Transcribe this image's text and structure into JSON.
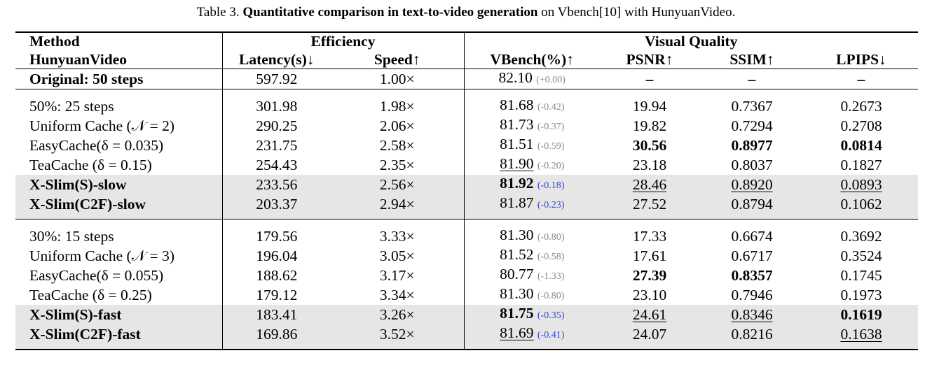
{
  "caption": {
    "prefix": "Table 3.",
    "bold": "Quantitative comparison in text-to-video generation",
    "suffix": "on Vbench[10] with HunyuanVideo."
  },
  "header": {
    "method": "Method",
    "model": "HunyuanVideo",
    "efficiency": "Efficiency",
    "visual_quality": "Visual Quality",
    "latency": "Latency(s)↓",
    "speed": "Speed↑",
    "vbench": "VBench(%)↑",
    "psnr": "PSNR↑",
    "ssim": "SSIM↑",
    "lpips": "LPIPS↓"
  },
  "original": {
    "method": "Original: 50 steps",
    "latency": "597.92",
    "speed": "1.00×",
    "vbench": "82.10",
    "delta": "(+0.00)",
    "psnr": "–",
    "ssim": "–",
    "lpips": "–"
  },
  "group1": [
    {
      "method": "50%: 25 steps",
      "latency": "301.98",
      "speed": "1.98×",
      "vbench": "81.68",
      "delta": "(-0.42)",
      "psnr": "19.94",
      "ssim": "0.7367",
      "lpips": "0.2673"
    },
    {
      "method": "Uniform Cache (𝒩 = 2)",
      "latency": "290.25",
      "speed": "2.06×",
      "vbench": "81.73",
      "delta": "(-0.37)",
      "psnr": "19.82",
      "ssim": "0.7294",
      "lpips": "0.2708"
    },
    {
      "method": "EasyCache(δ = 0.035)",
      "latency": "231.75",
      "speed": "2.58×",
      "vbench": "81.51",
      "delta": "(-0.59)",
      "psnr": "30.56",
      "ssim": "0.8977",
      "lpips": "0.0814"
    },
    {
      "method": "TeaCache (δ = 0.15)",
      "latency": "254.43",
      "speed": "2.35×",
      "vbench": "81.90",
      "delta": "(-0.20)",
      "psnr": "23.18",
      "ssim": "0.8037",
      "lpips": "0.1827"
    },
    {
      "method": "X-Slim(S)-slow",
      "latency": "233.56",
      "speed": "2.56×",
      "vbench": "81.92",
      "delta": "(-0.18)",
      "psnr": "28.46",
      "ssim": "0.8920",
      "lpips": "0.0893"
    },
    {
      "method": "X-Slim(C2F)-slow",
      "latency": "203.37",
      "speed": "2.94×",
      "vbench": "81.87",
      "delta": "(-0.23)",
      "psnr": "27.52",
      "ssim": "0.8794",
      "lpips": "0.1062"
    }
  ],
  "group2": [
    {
      "method": "30%: 15 steps",
      "latency": "179.56",
      "speed": "3.33×",
      "vbench": "81.30",
      "delta": "(-0.80)",
      "psnr": "17.33",
      "ssim": "0.6674",
      "lpips": "0.3692"
    },
    {
      "method": "Uniform Cache (𝒩 = 3)",
      "latency": "196.04",
      "speed": "3.05×",
      "vbench": "81.52",
      "delta": "(-0.58)",
      "psnr": "17.61",
      "ssim": "0.6717",
      "lpips": "0.3524"
    },
    {
      "method": "EasyCache(δ = 0.055)",
      "latency": "188.62",
      "speed": "3.17×",
      "vbench": "80.77",
      "delta": "(-1.33)",
      "psnr": "27.39",
      "ssim": "0.8357",
      "lpips": "0.1745"
    },
    {
      "method": "TeaCache (δ = 0.25)",
      "latency": "179.12",
      "speed": "3.34×",
      "vbench": "81.30",
      "delta": "(-0.80)",
      "psnr": "23.10",
      "ssim": "0.7946",
      "lpips": "0.1973"
    },
    {
      "method": "X-Slim(S)-fast",
      "latency": "183.41",
      "speed": "3.26×",
      "vbench": "81.75",
      "delta": "(-0.35)",
      "psnr": "24.61",
      "ssim": "0.8346",
      "lpips": "0.1619"
    },
    {
      "method": "X-Slim(C2F)-fast",
      "latency": "169.86",
      "speed": "3.52×",
      "vbench": "81.69",
      "delta": "(-0.41)",
      "psnr": "24.07",
      "ssim": "0.8216",
      "lpips": "0.1638"
    }
  ]
}
